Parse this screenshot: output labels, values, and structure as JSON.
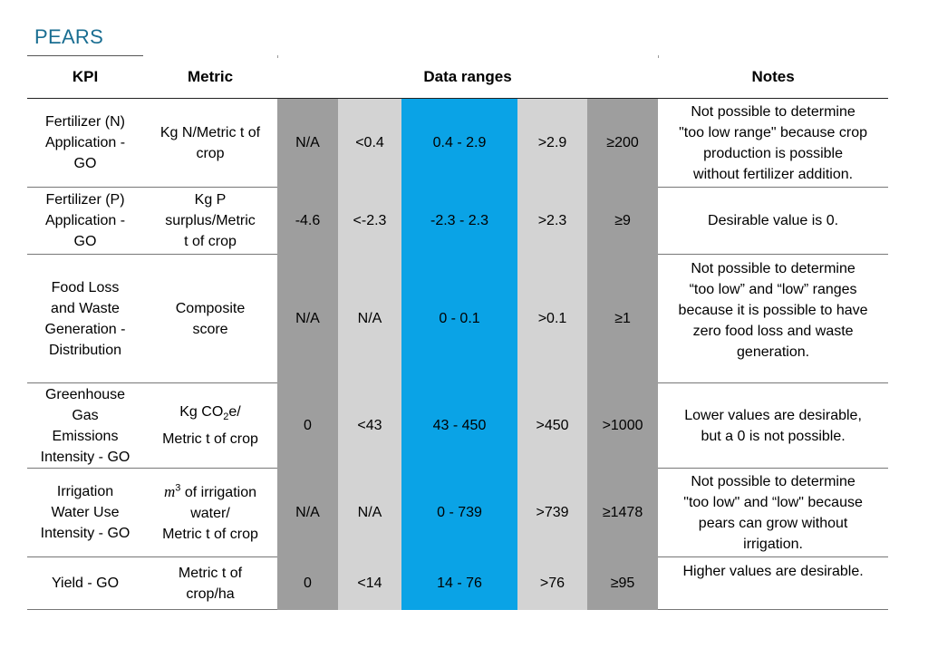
{
  "title": "PEARS",
  "headers": {
    "kpi": "KPI",
    "metric": "Metric",
    "data_ranges": "Data ranges",
    "notes": "Notes"
  },
  "colors": {
    "dark_gray": "#9e9e9e",
    "light_gray": "#d3d3d3",
    "blue": "#0aa3e6",
    "title": "#1a6e92"
  },
  "rows": [
    {
      "kpi": [
        "Fertilizer (N)",
        "Application -",
        "GO"
      ],
      "metric": [
        "Kg N/Metric t of",
        "crop"
      ],
      "ranges": [
        "N/A",
        "<0.4",
        "0.4 - 2.9",
        ">2.9",
        "≥200"
      ],
      "notes": [
        "Not possible to determine",
        "\"too low range\" because crop",
        "production is possible",
        "without fertilizer addition."
      ]
    },
    {
      "kpi": [
        "Fertilizer (P)",
        "Application -",
        "GO"
      ],
      "metric": [
        "Kg P",
        "surplus/Metric",
        "t of crop"
      ],
      "ranges": [
        "-4.6",
        "<-2.3",
        "-2.3 - 2.3",
        ">2.3",
        "≥9"
      ],
      "notes": [
        "Desirable value is 0."
      ]
    },
    {
      "kpi": [
        "Food Loss",
        "and Waste",
        "Generation -",
        "Distribution"
      ],
      "metric": [
        "Composite",
        "score"
      ],
      "ranges": [
        "N/A",
        "N/A",
        "0 - 0.1",
        ">0.1",
        "≥1"
      ],
      "notes": [
        "Not possible to determine",
        "“too low” and “low” ranges",
        "because it is possible to have",
        "zero food loss and waste",
        "generation."
      ]
    },
    {
      "kpi": [
        "Greenhouse",
        "Gas",
        "Emissions",
        "Intensity - GO"
      ],
      "metric_prefix": "Kg CO",
      "metric_sub": "2",
      "metric_suffix": "e/",
      "metric_line2": "Metric t of crop",
      "ranges": [
        "0",
        "<43",
        "43 - 450",
        ">450",
        ">1000"
      ],
      "notes": [
        "Lower values are desirable,",
        "but a 0 is not possible."
      ]
    },
    {
      "kpi": [
        "Irrigation",
        "Water Use",
        "Intensity - GO"
      ],
      "metric_m": "m",
      "metric_sup": "3",
      "metric_rest": " of irrigation",
      "metric_lines": [
        "water/",
        "Metric t of crop"
      ],
      "ranges": [
        "N/A",
        "N/A",
        "0 - 739",
        ">739",
        "≥1478"
      ],
      "notes": [
        "Not possible to determine",
        "\"too low\" and “low\" because",
        "pears can grow without",
        "irrigation."
      ]
    },
    {
      "kpi": [
        "Yield - GO"
      ],
      "metric": [
        "Metric t of",
        "crop/ha"
      ],
      "ranges": [
        "0",
        "<14",
        "14 - 76",
        ">76",
        "≥95"
      ],
      "notes": [
        "Higher values are desirable."
      ]
    }
  ]
}
